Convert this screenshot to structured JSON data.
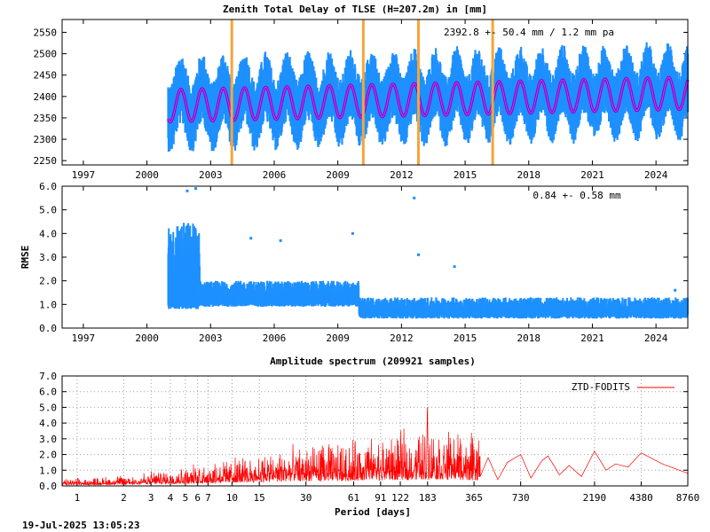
{
  "generated": "19-Jul-2025 13:05:23",
  "colors": {
    "obs": "#1e90ff",
    "model": "#9400d3",
    "break": "#f4a53b",
    "spectrum": "#ff0000",
    "axis": "#000000",
    "grid": "#a0a0a0"
  },
  "chart_data": [
    {
      "type": "scatter",
      "title": "Zenith Total Delay of TLSE (H=207.2m) in [mm]",
      "stats_label": "2392.8 +-  50.4 mm /  1.2 mm pa",
      "xlim": [
        1996,
        2025.5
      ],
      "ylim": [
        2240,
        2580
      ],
      "x_ticks": [
        1997,
        2000,
        2003,
        2006,
        2009,
        2012,
        2015,
        2018,
        2021,
        2024
      ],
      "y_ticks": [
        2250,
        2300,
        2350,
        2400,
        2450,
        2500,
        2550
      ],
      "grid": true,
      "series": [
        {
          "kind": "obs-envelope",
          "x_start": 2001.0,
          "x_end": 2025.5,
          "mean": 2392.8,
          "trend_per_year": 1.2,
          "annual_amplitude": 35,
          "upper_spread": 80,
          "lower_spread": 70
        },
        {
          "kind": "model-seasonal",
          "x_start": 2001.0,
          "x_end": 2025.5,
          "mean": 2392.8,
          "trend_per_year": 1.2,
          "annual_amplitude": 38
        }
      ],
      "breaks": [
        2004.0,
        2010.2,
        2012.8,
        2016.3
      ]
    },
    {
      "type": "scatter",
      "ylabel": "RMSE",
      "stats_label": "0.84 +-  0.58 mm",
      "xlim": [
        1996,
        2025.5
      ],
      "ylim": [
        0.0,
        6.0
      ],
      "x_ticks": [
        1997,
        2000,
        2003,
        2006,
        2009,
        2012,
        2015,
        2018,
        2021,
        2024
      ],
      "y_ticks": [
        0.0,
        1.0,
        2.0,
        3.0,
        4.0,
        5.0,
        6.0
      ],
      "y_tick_labels": [
        "0.0",
        "1.0",
        "2.0",
        "3.0",
        "4.0",
        "5.0",
        "6.0"
      ],
      "grid": true,
      "bands": [
        {
          "x": [
            2001.0,
            2002.5
          ],
          "low": 0.8,
          "high": 4.5
        },
        {
          "x": [
            2002.5,
            2010.0
          ],
          "low": 0.9,
          "high": 2.0
        },
        {
          "x": [
            2010.0,
            2025.5
          ],
          "low": 0.4,
          "high": 1.3
        }
      ],
      "spikes": [
        [
          2001.9,
          5.8
        ],
        [
          2002.3,
          5.9
        ],
        [
          2004.9,
          3.8
        ],
        [
          2006.3,
          3.7
        ],
        [
          2009.7,
          4.0
        ],
        [
          2012.6,
          5.5
        ],
        [
          2012.8,
          3.1
        ],
        [
          2014.5,
          2.6
        ],
        [
          2024.9,
          1.6
        ]
      ]
    },
    {
      "type": "line",
      "title": "Amplitude spectrum (209921 samples)",
      "xlabel": "Period [days]",
      "x_scale": "log",
      "xlim": [
        0.8,
        8760
      ],
      "ylim": [
        0.0,
        7.0
      ],
      "x_ticks": [
        1,
        2,
        3,
        4,
        5,
        6,
        7,
        10,
        15,
        30,
        61,
        91,
        122,
        183,
        365,
        730,
        2190,
        4380,
        8760
      ],
      "y_ticks": [
        0.0,
        1.0,
        2.0,
        3.0,
        4.0,
        5.0,
        6.0,
        7.0
      ],
      "y_tick_labels": [
        "0.0",
        "1.0",
        "2.0",
        "3.0",
        "4.0",
        "5.0",
        "6.0",
        "7.0"
      ],
      "grid": true,
      "legend": "top-right",
      "series": [
        {
          "name": "ZTD-FODITS",
          "envelope": [
            [
              0.8,
              0.3
            ],
            [
              2,
              0.5
            ],
            [
              5,
              0.9
            ],
            [
              10,
              1.3
            ],
            [
              30,
              1.9
            ],
            [
              100,
              2.3
            ],
            [
              180,
              2.7
            ],
            [
              400,
              2.3
            ]
          ],
          "peaks": [
            [
              182.6,
              5.6
            ],
            [
              365,
              2.5
            ],
            [
              730,
              2.0
            ],
            [
              1095,
              1.9
            ],
            [
              1500,
              1.3
            ],
            [
              2190,
              2.2
            ],
            [
              3000,
              1.4
            ],
            [
              4380,
              2.1
            ],
            [
              8760,
              0.8
            ]
          ]
        }
      ]
    }
  ]
}
